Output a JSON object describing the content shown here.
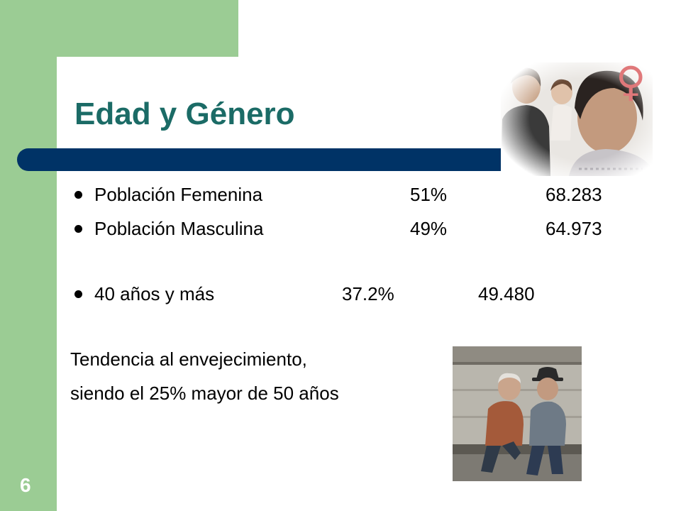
{
  "slide": {
    "title": "Edad y Género",
    "number": "6"
  },
  "stats": [
    {
      "label": "Población Femenina",
      "percent": "51%",
      "count": "68.283"
    },
    {
      "label": "Población Masculina",
      "percent": "49%",
      "count": "64.973"
    },
    {
      "label": "40 años y más",
      "percent": "37.2%",
      "count": "49.480"
    }
  ],
  "body_text": {
    "line1": "Tendencia al envejecimiento,",
    "line2": "siendo el 25% mayor de 50 años"
  },
  "colors": {
    "green": "#9bcc94",
    "title": "#1b6b66",
    "bar": "#003366",
    "female_symbol": "#e0787a"
  },
  "icons": {
    "female_symbol": "♀"
  }
}
